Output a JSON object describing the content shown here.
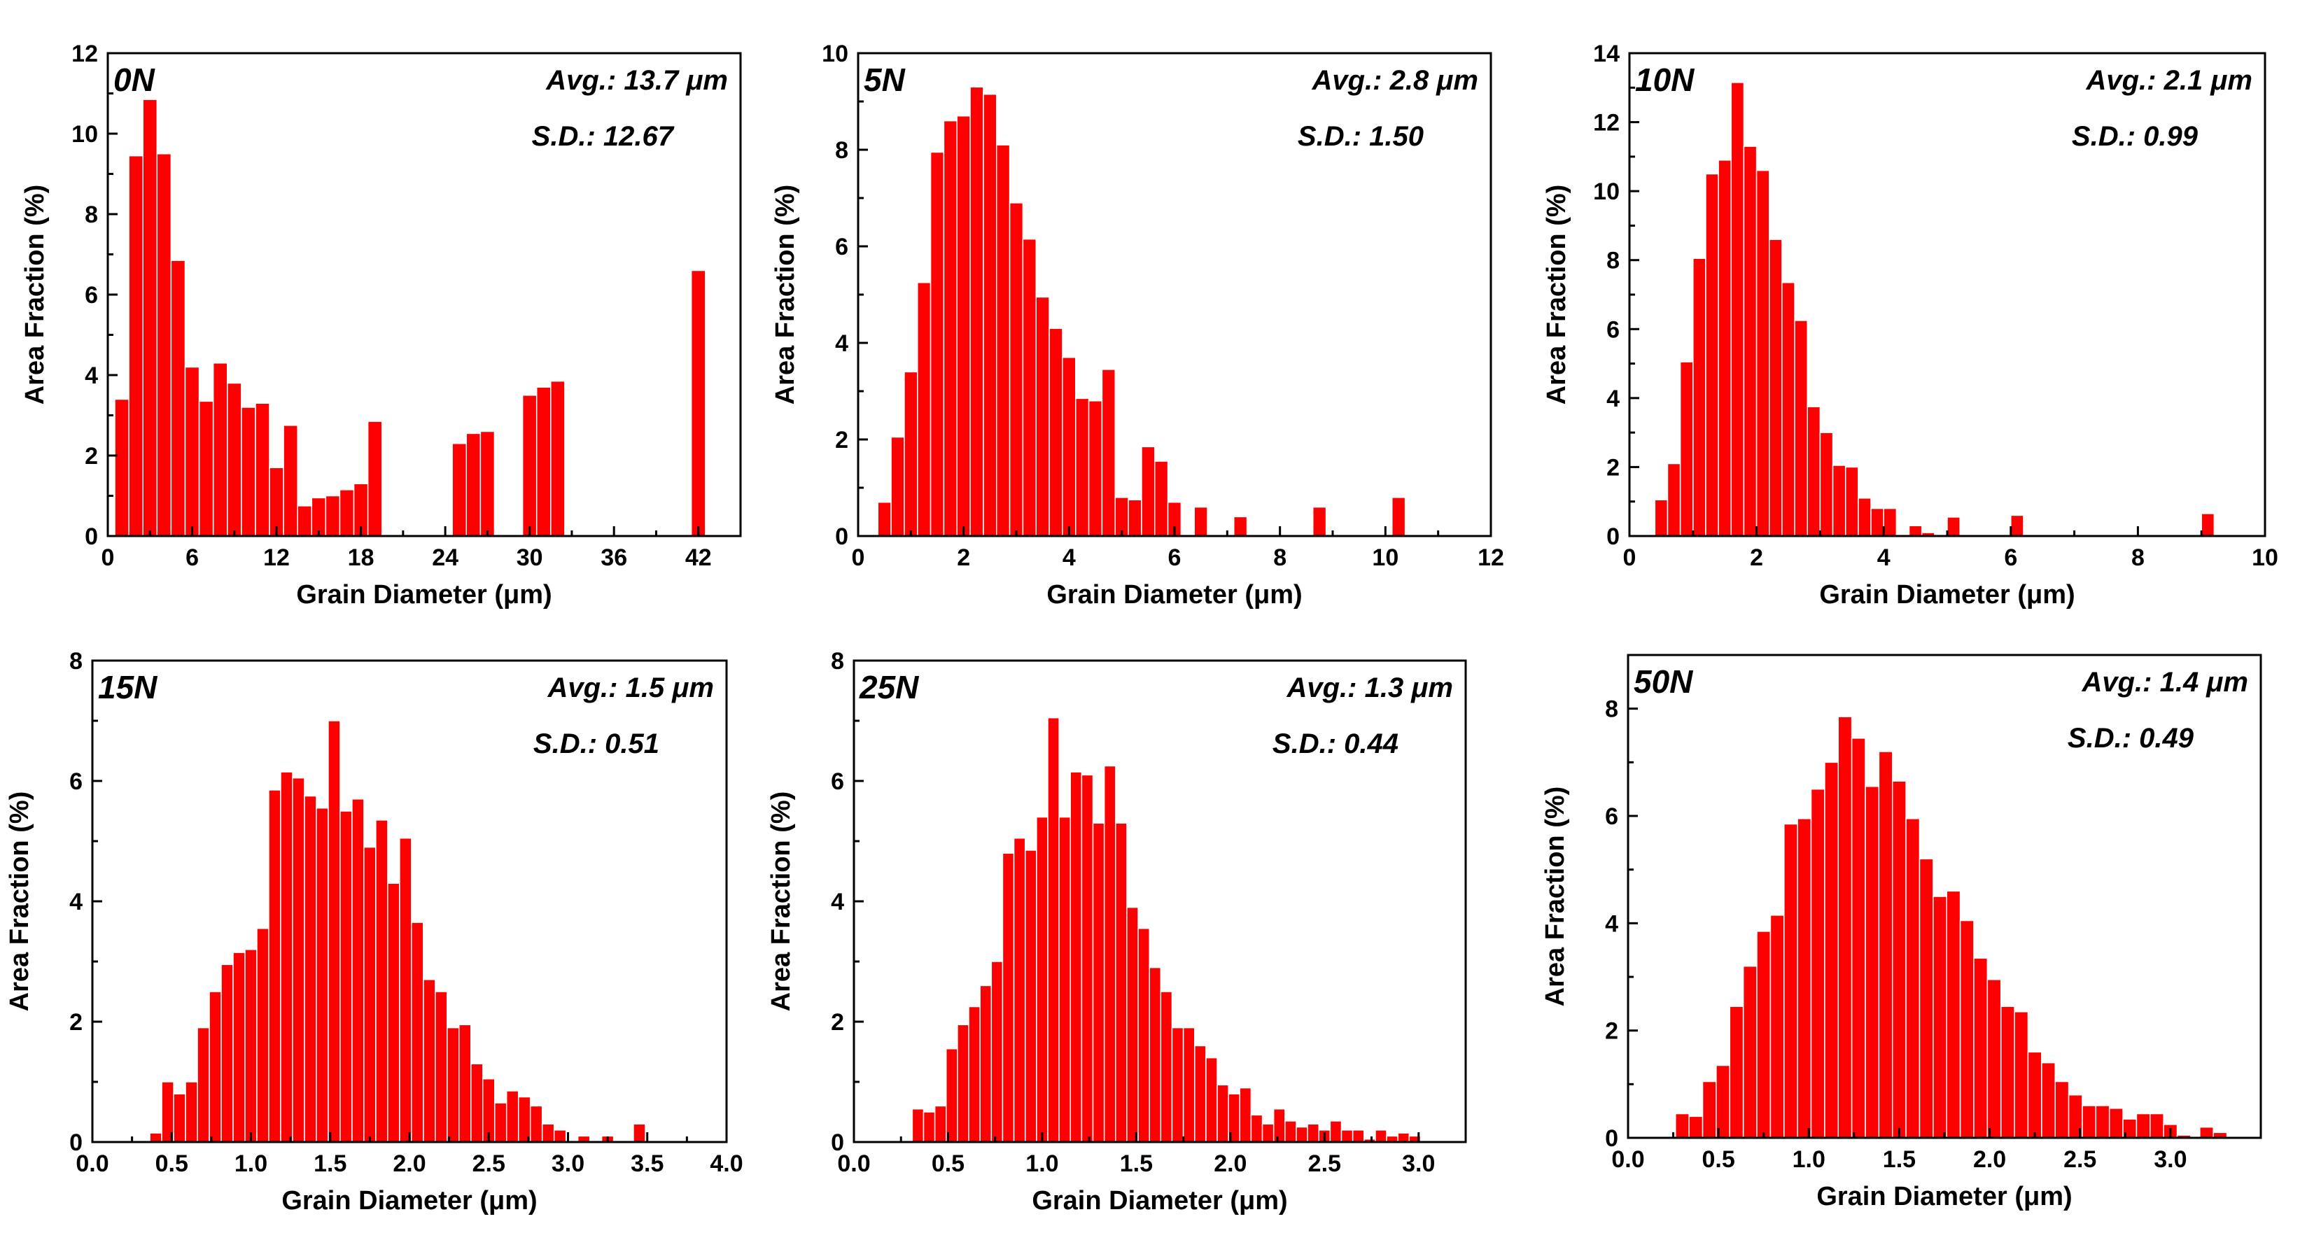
{
  "figure": {
    "xlabel": "Grain Diameter (μm)",
    "ylabel": "Area Fraction (%)"
  },
  "chart_data": [
    {
      "type": "bar",
      "label": "0N",
      "avg_text": "Avg.: 13.7 μm",
      "sd_text": "S.D.: 12.67",
      "xlabel": "Grain Diameter (μm)",
      "ylabel": "Area Fraction (%)",
      "xlim": [
        0,
        45
      ],
      "ylim": [
        0,
        12
      ],
      "xticks": [
        0,
        6,
        12,
        18,
        24,
        30,
        36,
        42
      ],
      "xtick_labels": [
        "0",
        "6",
        "12",
        "18",
        "24",
        "30",
        "36",
        "42"
      ],
      "yticks": [
        0,
        2,
        4,
        6,
        8,
        10,
        12
      ],
      "ytick_labels": [
        "0",
        "2",
        "4",
        "6",
        "8",
        "10",
        "12"
      ],
      "bin_width": 1,
      "x": [
        1,
        2,
        3,
        4,
        5,
        6,
        7,
        8,
        9,
        10,
        11,
        12,
        13,
        14,
        15,
        16,
        17,
        18,
        19,
        20,
        25,
        26,
        27,
        30,
        31,
        32,
        42
      ],
      "values": [
        3.4,
        9.45,
        10.85,
        9.5,
        6.85,
        4.2,
        3.35,
        4.3,
        3.8,
        3.2,
        3.3,
        1.7,
        2.75,
        0.75,
        0.95,
        1.0,
        1.15,
        1.3,
        2.85,
        0,
        2.3,
        2.55,
        2.6,
        3.5,
        3.7,
        3.85,
        6.6
      ]
    },
    {
      "type": "bar",
      "label": "5N",
      "avg_text": "Avg.: 2.8 μm",
      "sd_text": "S.D.: 1.50",
      "xlabel": "Grain Diameter (μm)",
      "ylabel": "Area Fraction (%)",
      "xlim": [
        0,
        12
      ],
      "ylim": [
        0,
        10
      ],
      "xticks": [
        0,
        2,
        4,
        6,
        8,
        10,
        12
      ],
      "xtick_labels": [
        "0",
        "2",
        "4",
        "6",
        "8",
        "10",
        "12"
      ],
      "yticks": [
        0,
        2,
        4,
        6,
        8,
        10
      ],
      "ytick_labels": [
        "0",
        "2",
        "4",
        "6",
        "8",
        "10"
      ],
      "bin_width": 0.25,
      "x": [
        0.5,
        0.75,
        1.0,
        1.25,
        1.5,
        1.75,
        2.0,
        2.25,
        2.5,
        2.75,
        3.0,
        3.25,
        3.5,
        3.75,
        4.0,
        4.25,
        4.5,
        4.75,
        5.0,
        5.25,
        5.5,
        5.75,
        6.0,
        6.5,
        7.25,
        8.75,
        10.25
      ],
      "values": [
        0.7,
        2.05,
        3.4,
        5.25,
        7.95,
        8.6,
        8.7,
        9.3,
        9.15,
        8.1,
        6.9,
        6.15,
        4.95,
        4.3,
        3.7,
        2.85,
        2.8,
        3.45,
        0.8,
        0.75,
        1.85,
        1.55,
        0.7,
        0.6,
        0.4,
        0.6,
        0.8
      ]
    },
    {
      "type": "bar",
      "label": "10N",
      "avg_text": "Avg.: 2.1 μm",
      "sd_text": "S.D.: 0.99",
      "xlabel": "Grain Diameter (μm)",
      "ylabel": "Area Fraction (%)",
      "xlim": [
        0,
        10
      ],
      "ylim": [
        0,
        14
      ],
      "xticks": [
        0,
        2,
        4,
        6,
        8,
        10
      ],
      "xtick_labels": [
        "0",
        "2",
        "4",
        "6",
        "8",
        "10"
      ],
      "yticks": [
        0,
        2,
        4,
        6,
        8,
        10,
        12,
        14
      ],
      "ytick_labels": [
        "0",
        "2",
        "4",
        "6",
        "8",
        "10",
        "12",
        "14"
      ],
      "bin_width": 0.2,
      "x": [
        0.5,
        0.7,
        0.9,
        1.1,
        1.3,
        1.5,
        1.7,
        1.9,
        2.1,
        2.3,
        2.5,
        2.7,
        2.9,
        3.1,
        3.3,
        3.5,
        3.7,
        3.9,
        4.1,
        4.5,
        4.7,
        5.1,
        6.1,
        9.1
      ],
      "values": [
        1.05,
        2.1,
        5.05,
        8.05,
        10.5,
        10.9,
        13.15,
        11.3,
        10.6,
        8.6,
        7.35,
        6.25,
        3.75,
        3.0,
        2.05,
        2.0,
        1.1,
        0.8,
        0.8,
        0.3,
        0.1,
        0.55,
        0.6,
        0.65
      ]
    },
    {
      "type": "bar",
      "label": "15N",
      "avg_text": "Avg.: 1.5 μm",
      "sd_text": "S.D.: 0.51",
      "xlabel": "Grain Diameter (μm)",
      "ylabel": "Area Fraction (%)",
      "xlim": [
        0,
        4
      ],
      "ylim": [
        0,
        8
      ],
      "xticks": [
        0,
        0.5,
        1.0,
        1.5,
        2.0,
        2.5,
        3.0,
        3.5,
        4.0
      ],
      "xtick_labels": [
        "0.0",
        "0.5",
        "1.0",
        "1.5",
        "2.0",
        "2.5",
        "3.0",
        "3.5",
        "4.0"
      ],
      "yticks": [
        0,
        2,
        4,
        6,
        8
      ],
      "ytick_labels": [
        "0",
        "2",
        "4",
        "6",
        "8"
      ],
      "bin_width": 0.075,
      "x": [
        0.4,
        0.475,
        0.55,
        0.625,
        0.7,
        0.775,
        0.85,
        0.925,
        1.0,
        1.075,
        1.15,
        1.225,
        1.3,
        1.375,
        1.45,
        1.525,
        1.6,
        1.675,
        1.75,
        1.825,
        1.9,
        1.975,
        2.05,
        2.125,
        2.2,
        2.275,
        2.35,
        2.425,
        2.5,
        2.575,
        2.65,
        2.725,
        2.8,
        2.875,
        2.95,
        3.1,
        3.25,
        3.45
      ],
      "values": [
        0.15,
        1.0,
        0.8,
        1.0,
        1.9,
        2.5,
        2.95,
        3.15,
        3.2,
        3.55,
        5.85,
        6.15,
        6.05,
        5.75,
        5.55,
        7.0,
        5.5,
        5.7,
        4.9,
        5.35,
        4.3,
        5.05,
        3.65,
        2.7,
        2.5,
        1.9,
        1.95,
        1.3,
        1.05,
        0.65,
        0.85,
        0.75,
        0.6,
        0.3,
        0.2,
        0.1,
        0.1,
        0.3
      ]
    },
    {
      "type": "bar",
      "label": "25N",
      "avg_text": "Avg.: 1.3 μm",
      "sd_text": "S.D.: 0.44",
      "xlabel": "Grain Diameter (μm)",
      "ylabel": "Area Fraction (%)",
      "xlim": [
        0,
        3.25
      ],
      "ylim": [
        0,
        8
      ],
      "xticks": [
        0,
        0.5,
        1.0,
        1.5,
        2.0,
        2.5,
        3.0
      ],
      "xtick_labels": [
        "0.0",
        "0.5",
        "1.0",
        "1.5",
        "2.0",
        "2.5",
        "3.0"
      ],
      "yticks": [
        0,
        2,
        4,
        6,
        8
      ],
      "ytick_labels": [
        "0",
        "2",
        "4",
        "6",
        "8"
      ],
      "bin_width": 0.06,
      "x": [
        0.34,
        0.4,
        0.46,
        0.52,
        0.58,
        0.64,
        0.7,
        0.76,
        0.82,
        0.88,
        0.94,
        1.0,
        1.06,
        1.12,
        1.18,
        1.24,
        1.3,
        1.36,
        1.42,
        1.48,
        1.54,
        1.6,
        1.66,
        1.72,
        1.78,
        1.84,
        1.9,
        1.96,
        2.02,
        2.08,
        2.14,
        2.2,
        2.26,
        2.32,
        2.38,
        2.44,
        2.5,
        2.56,
        2.62,
        2.68,
        2.74,
        2.8,
        2.86,
        2.92,
        2.98
      ],
      "values": [
        0.55,
        0.5,
        0.6,
        1.55,
        1.95,
        2.25,
        2.6,
        3.0,
        4.8,
        5.05,
        4.85,
        5.4,
        7.05,
        5.4,
        6.15,
        6.1,
        5.3,
        6.25,
        5.3,
        3.9,
        3.55,
        2.9,
        2.5,
        1.9,
        1.9,
        1.6,
        1.4,
        0.95,
        0.8,
        0.9,
        0.45,
        0.3,
        0.55,
        0.35,
        0.25,
        0.3,
        0.2,
        0.35,
        0.2,
        0.2,
        0.05,
        0.2,
        0.1,
        0.15,
        0.1
      ]
    },
    {
      "type": "bar",
      "label": "50N",
      "avg_text": "Avg.: 1.4 μm",
      "sd_text": "S.D.: 0.49",
      "xlabel": "Grain Diameter (μm)",
      "ylabel": "Area Fraction (%)",
      "xlim": [
        0,
        3.5
      ],
      "ylim": [
        0,
        9
      ],
      "xticks": [
        0,
        0.5,
        1.0,
        1.5,
        2.0,
        2.5,
        3.0
      ],
      "xtick_labels": [
        "0.0",
        "0.5",
        "1.0",
        "1.5",
        "2.0",
        "2.5",
        "3.0"
      ],
      "yticks": [
        0,
        2,
        4,
        6,
        8
      ],
      "ytick_labels": [
        "0",
        "2",
        "4",
        "6",
        "8"
      ],
      "bin_width": 0.075,
      "x": [
        0.3,
        0.375,
        0.45,
        0.525,
        0.6,
        0.675,
        0.75,
        0.825,
        0.9,
        0.975,
        1.05,
        1.125,
        1.2,
        1.275,
        1.35,
        1.425,
        1.5,
        1.575,
        1.65,
        1.725,
        1.8,
        1.875,
        1.95,
        2.025,
        2.1,
        2.175,
        2.25,
        2.325,
        2.4,
        2.475,
        2.55,
        2.625,
        2.7,
        2.775,
        2.85,
        2.925,
        3.0,
        3.075,
        3.2,
        3.275
      ],
      "values": [
        0.45,
        0.4,
        1.05,
        1.35,
        2.45,
        3.2,
        3.85,
        4.15,
        5.85,
        5.95,
        6.5,
        7.0,
        7.85,
        7.45,
        6.55,
        7.2,
        6.65,
        5.95,
        5.2,
        4.5,
        4.6,
        4.05,
        3.35,
        2.95,
        2.45,
        2.35,
        1.6,
        1.4,
        1.05,
        0.8,
        0.6,
        0.6,
        0.55,
        0.35,
        0.45,
        0.45,
        0.25,
        0.05,
        0.2,
        0.1
      ]
    }
  ]
}
